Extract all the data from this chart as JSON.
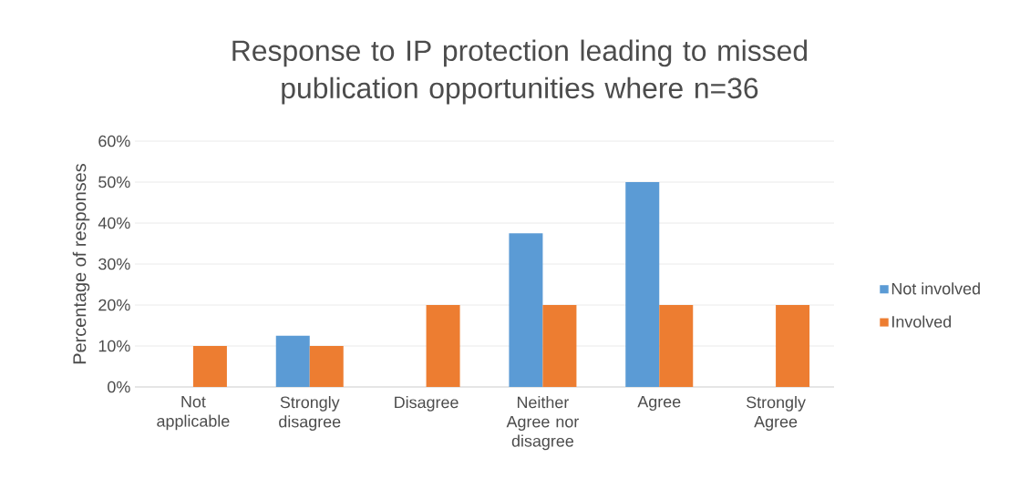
{
  "chart_data": {
    "type": "bar",
    "title": "Response to IP protection leading to missed publication opportunities where n=36",
    "ylabel": "Percentage of responses",
    "categories": [
      "Not applicable",
      "Strongly disagree",
      "Disagree",
      "Neither Agree nor disagree",
      "Agree",
      "Strongly Agree"
    ],
    "series": [
      {
        "name": "Not involved",
        "color": "#5b9bd5",
        "values": [
          0,
          12.5,
          0,
          37.5,
          50,
          0
        ]
      },
      {
        "name": "Involved",
        "color": "#ed7d31",
        "values": [
          10,
          10,
          20,
          20,
          20,
          20
        ]
      }
    ],
    "ylim": [
      0,
      60
    ],
    "yticks": [
      {
        "value": 0,
        "label": "0%"
      },
      {
        "value": 10,
        "label": "10%"
      },
      {
        "value": 20,
        "label": "20%"
      },
      {
        "value": 30,
        "label": "30%"
      },
      {
        "value": 40,
        "label": "40%"
      },
      {
        "value": 50,
        "label": "50%"
      },
      {
        "value": 60,
        "label": "60%"
      }
    ],
    "grid": "y",
    "legend": "right"
  }
}
